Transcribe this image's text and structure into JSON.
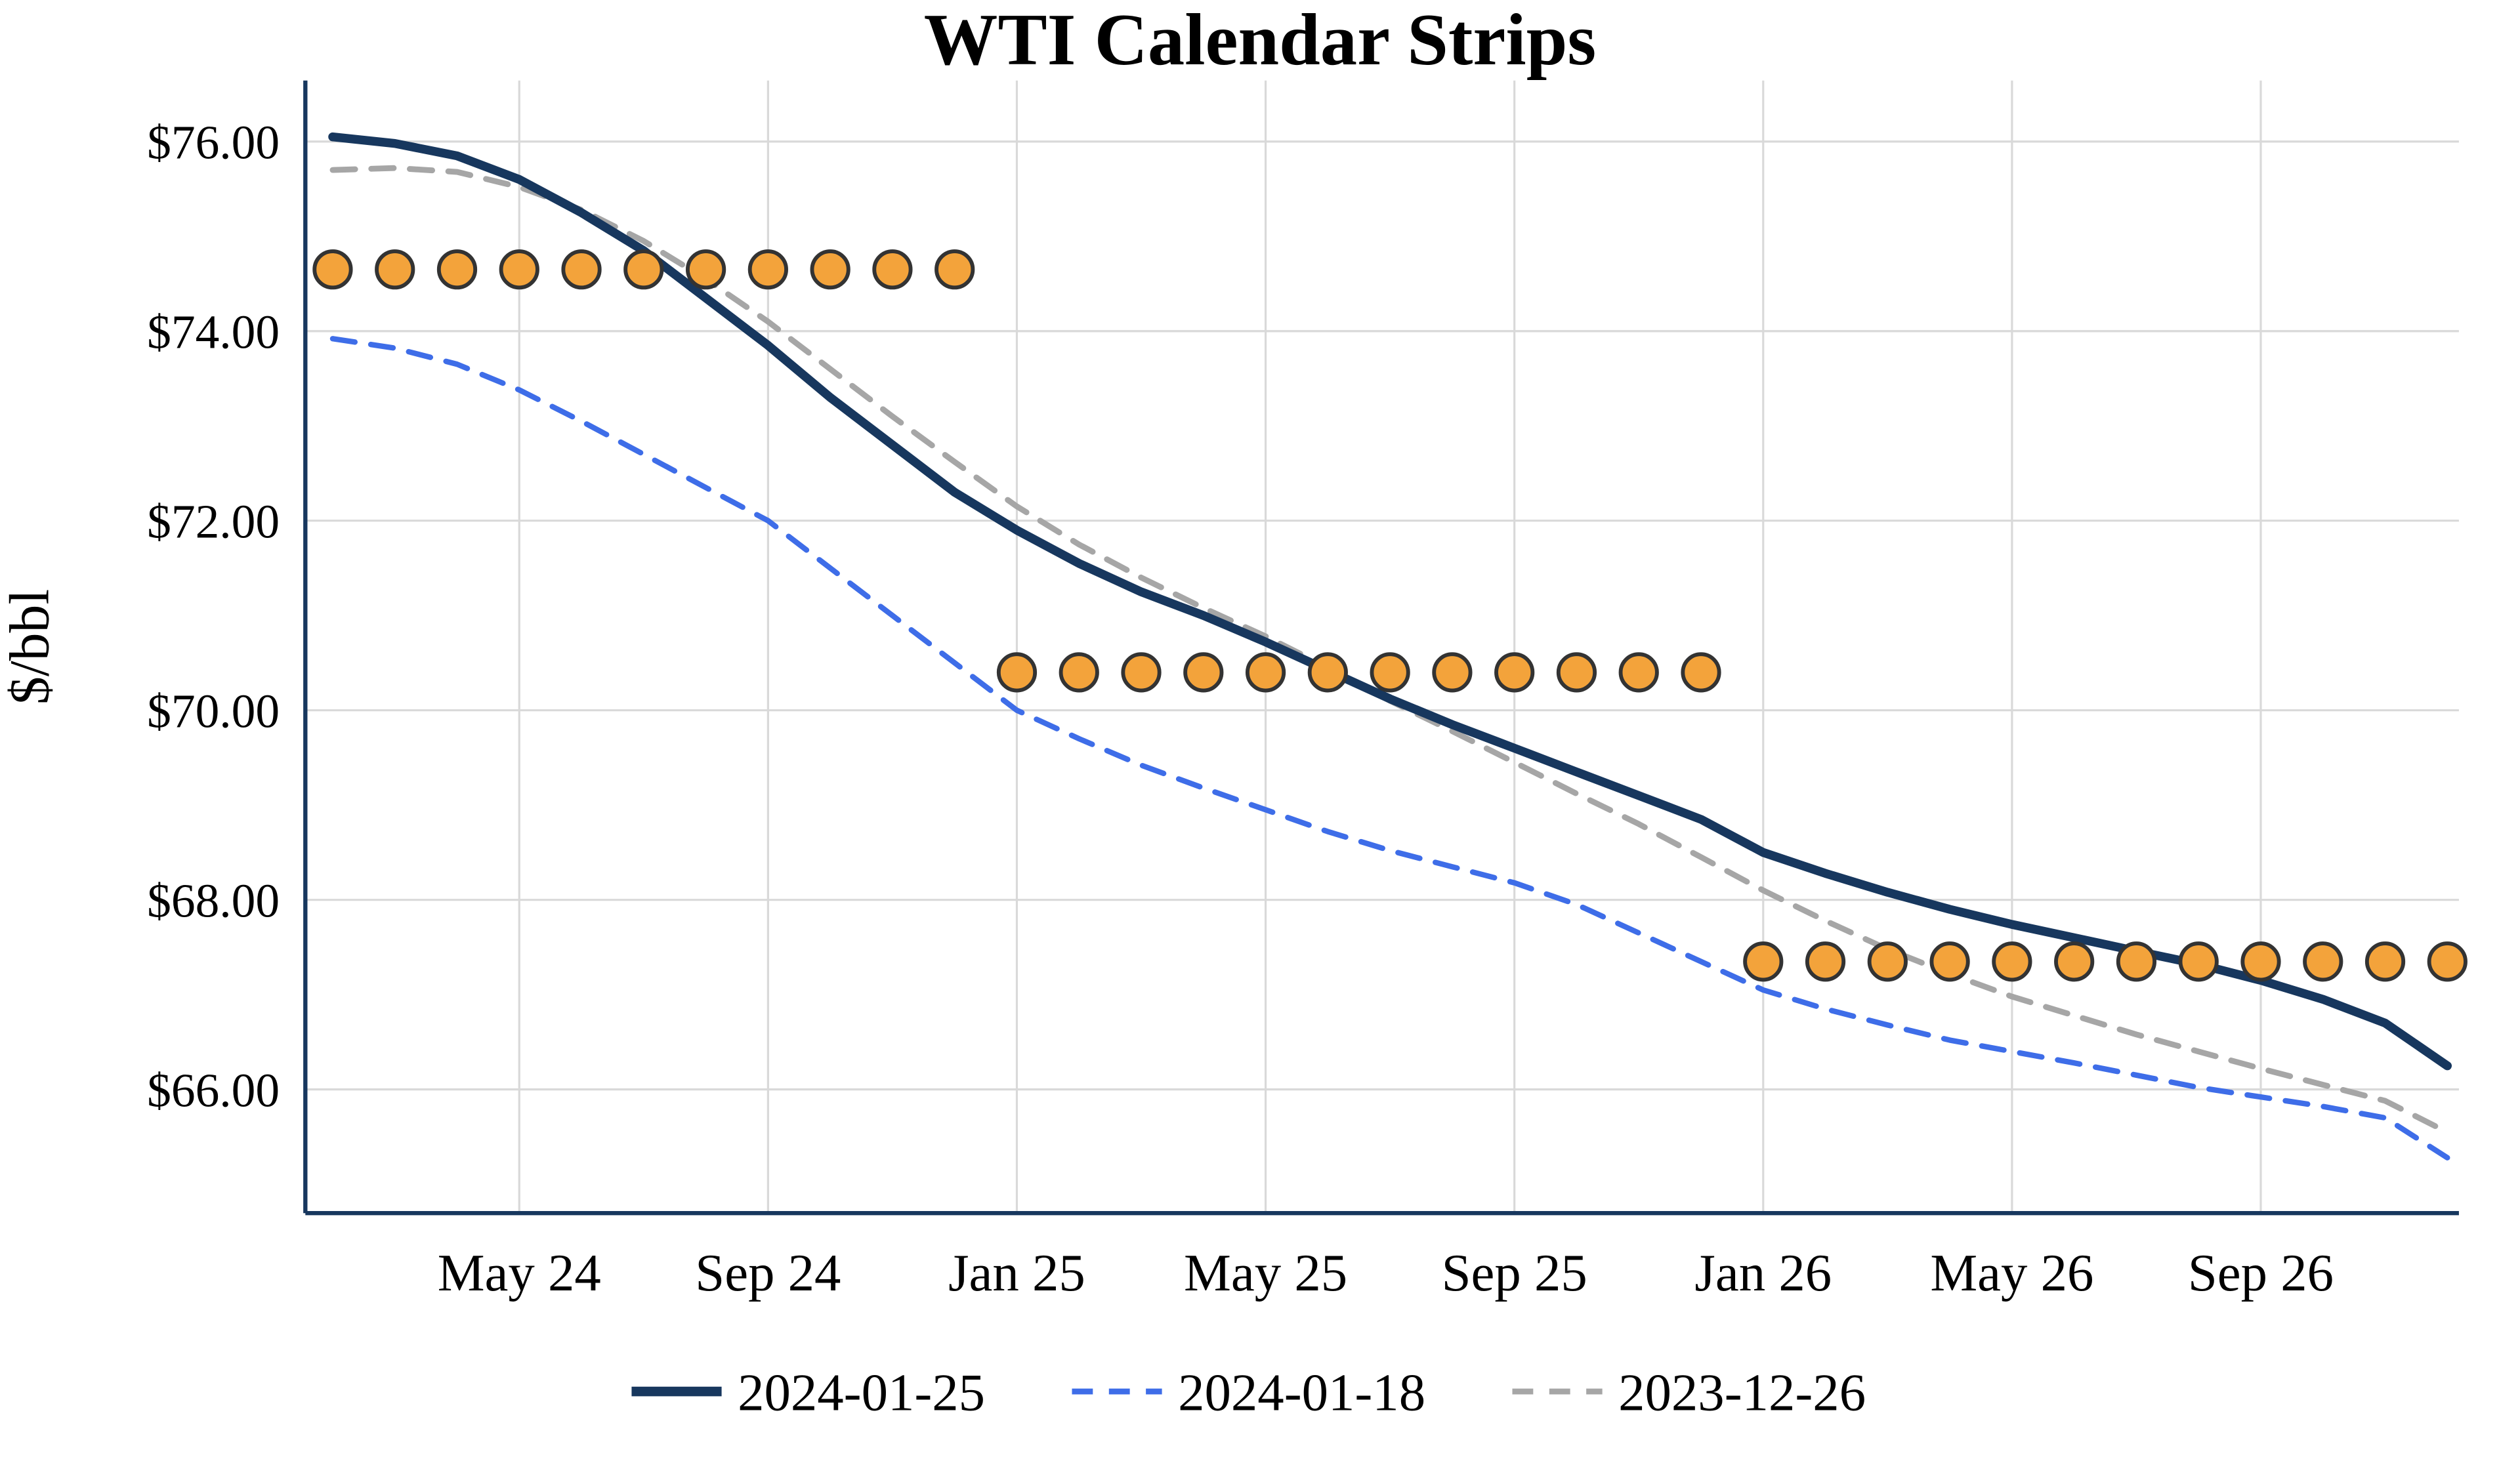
{
  "chart_data": {
    "type": "line",
    "title": "WTI Calendar Strips",
    "ylabel": "$/bbl",
    "xlabel": "",
    "grid": true,
    "legend_position": "bottom",
    "legend_labels": [
      "2024-01-25",
      "2024-01-18",
      "2023-12-26"
    ],
    "x_months": [
      "2024-02",
      "2024-03",
      "2024-04",
      "2024-05",
      "2024-06",
      "2024-07",
      "2024-08",
      "2024-09",
      "2024-10",
      "2024-11",
      "2024-12",
      "2025-01",
      "2025-02",
      "2025-03",
      "2025-04",
      "2025-05",
      "2025-06",
      "2025-07",
      "2025-08",
      "2025-09",
      "2025-10",
      "2025-11",
      "2025-12",
      "2026-01",
      "2026-02",
      "2026-03",
      "2026-04",
      "2026-05",
      "2026-06",
      "2026-07",
      "2026-08",
      "2026-09",
      "2026-10",
      "2026-11",
      "2026-12"
    ],
    "x_tick_labels": [
      "May 24",
      "Sep 24",
      "Jan 25",
      "May 25",
      "Sep 25",
      "Jan 26",
      "May 26",
      "Sep 26"
    ],
    "x_tick_month_indices": [
      3,
      7,
      11,
      15,
      19,
      23,
      27,
      31
    ],
    "y_ticks": [
      76,
      74,
      72,
      70,
      68,
      66
    ],
    "y_tick_labels": [
      "$76.00",
      "$74.00",
      "$72.00",
      "$70.00",
      "$68.00",
      "$66.00"
    ],
    "ylim": [
      64.7,
      76.6
    ],
    "series": [
      {
        "name": "2024-01-25",
        "style": "solid",
        "color": "#17375E",
        "width": 5.5,
        "values": [
          76.05,
          75.98,
          75.85,
          75.6,
          75.25,
          74.85,
          74.35,
          73.85,
          73.3,
          72.8,
          72.3,
          71.9,
          71.55,
          71.25,
          71.0,
          70.72,
          70.42,
          70.12,
          69.85,
          69.6,
          69.35,
          69.1,
          68.85,
          68.5,
          68.28,
          68.08,
          67.9,
          67.74,
          67.6,
          67.46,
          67.32,
          67.15,
          66.95,
          66.7,
          66.25
        ]
      },
      {
        "name": "2024-01-18",
        "style": "dashed",
        "color": "#3E6DE8",
        "width": 3.4,
        "values": [
          73.92,
          73.82,
          73.65,
          73.38,
          73.05,
          72.7,
          72.35,
          72.0,
          71.5,
          71.0,
          70.5,
          70.0,
          69.7,
          69.42,
          69.18,
          68.95,
          68.72,
          68.52,
          68.35,
          68.18,
          67.95,
          67.65,
          67.35,
          67.05,
          66.85,
          66.68,
          66.52,
          66.4,
          66.28,
          66.15,
          66.02,
          65.92,
          65.82,
          65.7,
          65.28
        ]
      },
      {
        "name": "2023-12-26",
        "style": "dashed",
        "color": "#A6A6A6",
        "width": 3.6,
        "values": [
          75.7,
          75.72,
          75.68,
          75.52,
          75.28,
          74.95,
          74.55,
          74.1,
          73.6,
          73.1,
          72.62,
          72.15,
          71.75,
          71.4,
          71.08,
          70.78,
          70.45,
          70.1,
          69.78,
          69.45,
          69.12,
          68.8,
          68.45,
          68.1,
          67.78,
          67.48,
          67.22,
          66.98,
          66.78,
          66.58,
          66.4,
          66.22,
          66.05,
          65.88,
          65.55
        ]
      }
    ],
    "strip_markers": {
      "fill": "#F3A33B",
      "edge": "#333333",
      "strips": [
        {
          "value": 74.65,
          "start_index": 0,
          "end_index": 10,
          "from_month": "2024-02",
          "to_month": "2024-12"
        },
        {
          "value": 70.4,
          "start_index": 11,
          "end_index": 22,
          "from_month": "2025-01",
          "to_month": "2025-12"
        },
        {
          "value": 67.35,
          "start_index": 23,
          "end_index": 34,
          "from_month": "2026-01",
          "to_month": "2026-12"
        }
      ]
    },
    "axis_color": "#17375E",
    "gridline_color": "#D9D9D9"
  }
}
